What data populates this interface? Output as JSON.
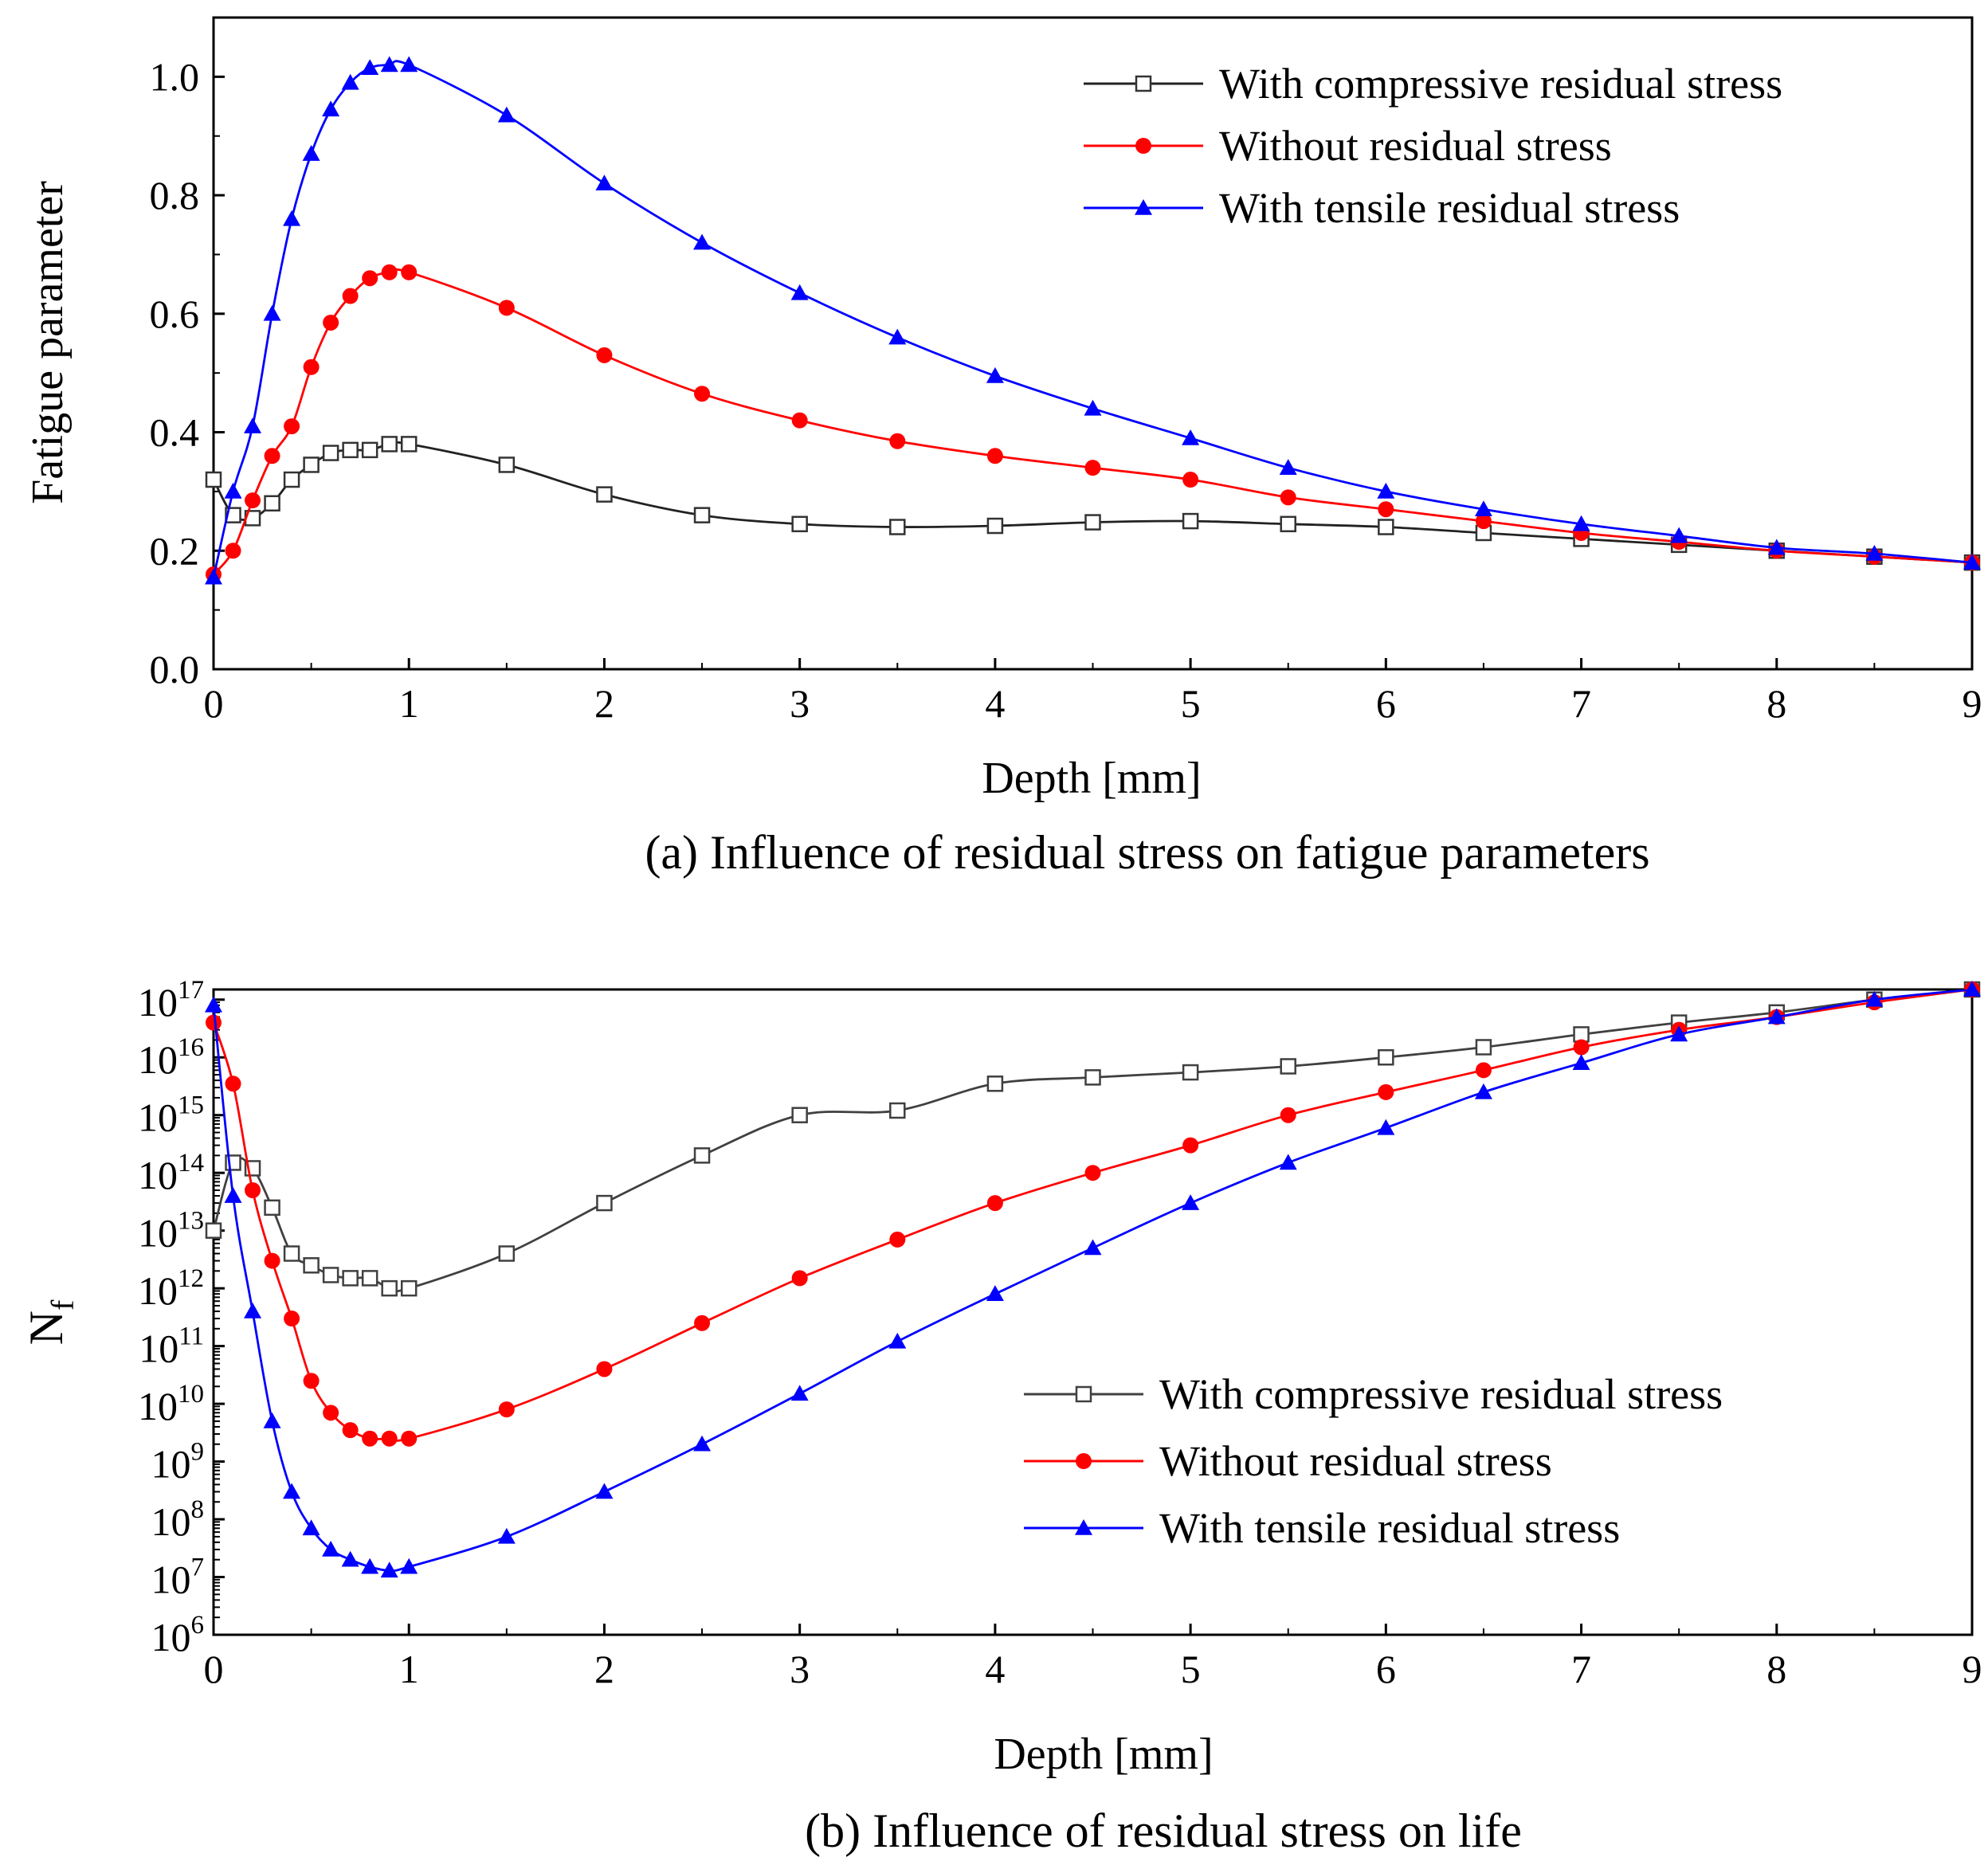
{
  "chart_data": [
    {
      "type": "line",
      "caption": "(a) Influence of residual stress on fatigue parameters",
      "xlabel": "Depth [mm]",
      "ylabel": "Fatigue parameter",
      "xlim": [
        0,
        9
      ],
      "ylim": [
        0,
        1.1
      ],
      "xticks": [
        0,
        1,
        2,
        3,
        4,
        5,
        6,
        7,
        8,
        9
      ],
      "xtick_labels": [
        "0",
        "1",
        "2",
        "3",
        "4",
        "5",
        "6",
        "7",
        "8",
        "9"
      ],
      "yticks": [
        0.0,
        0.2,
        0.4,
        0.6,
        0.8,
        1.0
      ],
      "ytick_labels": [
        "0.0",
        "0.2",
        "0.4",
        "0.6",
        "0.8",
        "1.0"
      ],
      "legend_position": "top-right",
      "series": [
        {
          "name": "With compressive residual stress",
          "color": "#000000",
          "marker": "open-square",
          "x": [
            0,
            0.1,
            0.2,
            0.3,
            0.4,
            0.5,
            0.6,
            0.7,
            0.8,
            0.9,
            1.0,
            1.5,
            2.0,
            2.5,
            3.0,
            3.5,
            4.0,
            4.5,
            5.0,
            5.5,
            6.0,
            6.5,
            7.0,
            7.5,
            8.0,
            8.5,
            9.0
          ],
          "y": [
            0.32,
            0.26,
            0.255,
            0.28,
            0.32,
            0.345,
            0.365,
            0.37,
            0.37,
            0.38,
            0.38,
            0.345,
            0.295,
            0.26,
            0.245,
            0.24,
            0.242,
            0.248,
            0.25,
            0.245,
            0.24,
            0.23,
            0.22,
            0.21,
            0.2,
            0.19,
            0.18
          ]
        },
        {
          "name": "Without residual stress",
          "color": "#ff0000",
          "marker": "filled-circle",
          "x": [
            0,
            0.1,
            0.2,
            0.3,
            0.4,
            0.5,
            0.6,
            0.7,
            0.8,
            0.9,
            1.0,
            1.5,
            2.0,
            2.5,
            3.0,
            3.5,
            4.0,
            4.5,
            5.0,
            5.5,
            6.0,
            6.5,
            7.0,
            7.5,
            8.0,
            8.5,
            9.0
          ],
          "y": [
            0.16,
            0.2,
            0.285,
            0.36,
            0.41,
            0.51,
            0.585,
            0.63,
            0.66,
            0.67,
            0.67,
            0.61,
            0.53,
            0.465,
            0.42,
            0.385,
            0.36,
            0.34,
            0.32,
            0.29,
            0.27,
            0.25,
            0.23,
            0.215,
            0.2,
            0.19,
            0.18
          ]
        },
        {
          "name": "With tensile residual stress",
          "color": "#0000ff",
          "marker": "filled-triangle",
          "x": [
            0,
            0.1,
            0.2,
            0.3,
            0.4,
            0.5,
            0.6,
            0.7,
            0.8,
            0.9,
            1.0,
            1.5,
            2.0,
            2.5,
            3.0,
            3.5,
            4.0,
            4.5,
            5.0,
            5.5,
            6.0,
            6.5,
            7.0,
            7.5,
            8.0,
            8.5,
            9.0
          ],
          "y": [
            0.155,
            0.3,
            0.41,
            0.6,
            0.76,
            0.87,
            0.945,
            0.99,
            1.015,
            1.02,
            1.02,
            0.935,
            0.82,
            0.72,
            0.635,
            0.56,
            0.495,
            0.44,
            0.39,
            0.34,
            0.3,
            0.27,
            0.245,
            0.225,
            0.205,
            0.195,
            0.18
          ]
        }
      ]
    },
    {
      "type": "line",
      "caption": "(b) Influence of residual stress on life",
      "xlabel": "Depth [mm]",
      "ylabel_base": "N",
      "ylabel_sub": "f",
      "yscale": "log",
      "xlim": [
        0,
        9
      ],
      "ylim": [
        1000000.0,
        1.5e+17
      ],
      "xticks": [
        0,
        1,
        2,
        3,
        4,
        5,
        6,
        7,
        8,
        9
      ],
      "xtick_labels": [
        "0",
        "1",
        "2",
        "3",
        "4",
        "5",
        "6",
        "7",
        "8",
        "9"
      ],
      "ytick_exponents": [
        6,
        7,
        8,
        9,
        10,
        11,
        12,
        13,
        14,
        15,
        16,
        17
      ],
      "ytick_base": "10",
      "legend_position": "center-right",
      "series": [
        {
          "name": "With compressive residual stress",
          "color": "#404040",
          "marker": "open-square",
          "x": [
            0,
            0.1,
            0.2,
            0.3,
            0.4,
            0.5,
            0.6,
            0.7,
            0.8,
            0.9,
            1.0,
            1.5,
            2.0,
            2.5,
            3.0,
            3.5,
            4.0,
            4.5,
            5.0,
            5.5,
            6.0,
            6.5,
            7.0,
            7.5,
            8.0,
            8.5,
            9.0
          ],
          "y": [
            10000000000000.0,
            150000000000000.0,
            120000000000000.0,
            25000000000000.0,
            4000000000000.0,
            2500000000000.0,
            1700000000000.0,
            1500000000000.0,
            1500000000000.0,
            1000000000000.0,
            1000000000000.0,
            4000000000000.0,
            30000000000000.0,
            200000000000000.0,
            1000000000000000.0,
            1200000000000000.0,
            3500000000000000.0,
            4500000000000000.0,
            5500000000000000.0,
            7000000000000000.0,
            1e+16,
            1.5e+16,
            2.5e+16,
            4e+16,
            6e+16,
            1e+17,
            1.5e+17
          ]
        },
        {
          "name": "Without residual stress",
          "color": "#ff0000",
          "marker": "filled-circle",
          "x": [
            0,
            0.1,
            0.2,
            0.3,
            0.4,
            0.5,
            0.6,
            0.7,
            0.8,
            0.9,
            1.0,
            1.5,
            2.0,
            2.5,
            3.0,
            3.5,
            4.0,
            4.5,
            5.0,
            5.5,
            6.0,
            6.5,
            7.0,
            7.5,
            8.0,
            8.5,
            9.0
          ],
          "y": [
            4e+16,
            3500000000000000.0,
            50000000000000.0,
            3000000000000.0,
            300000000000.0,
            25000000000.0,
            7000000000.0,
            3500000000.0,
            2500000000.0,
            2500000000.0,
            2500000000.0,
            8000000000.0,
            40000000000.0,
            250000000000.0,
            1500000000000.0,
            7000000000000.0,
            30000000000000.0,
            100000000000000.0,
            300000000000000.0,
            1000000000000000.0,
            2500000000000000.0,
            6000000000000000.0,
            1.5e+16,
            3e+16,
            5e+16,
            9e+16,
            1.5e+17
          ]
        },
        {
          "name": "With tensile residual stress",
          "color": "#0000ff",
          "marker": "filled-triangle",
          "x": [
            0,
            0.1,
            0.2,
            0.3,
            0.4,
            0.5,
            0.6,
            0.7,
            0.8,
            0.9,
            1.0,
            1.5,
            2.0,
            2.5,
            3.0,
            3.5,
            4.0,
            4.5,
            5.0,
            5.5,
            6.0,
            6.5,
            7.0,
            7.5,
            8.0,
            8.5,
            9.0
          ],
          "y": [
            8e+16,
            40000000000000.0,
            400000000000.0,
            5000000000.0,
            300000000.0,
            70000000.0,
            30000000.0,
            20000000.0,
            15000000.0,
            13000000.0,
            15000000.0,
            50000000.0,
            300000000.0,
            2000000000.0,
            15000000000.0,
            120000000000.0,
            800000000000.0,
            5000000000000.0,
            30000000000000.0,
            150000000000000.0,
            600000000000000.0,
            2500000000000000.0,
            8000000000000000.0,
            2.5e+16,
            5e+16,
            1e+17,
            1.5e+17
          ]
        }
      ]
    }
  ]
}
